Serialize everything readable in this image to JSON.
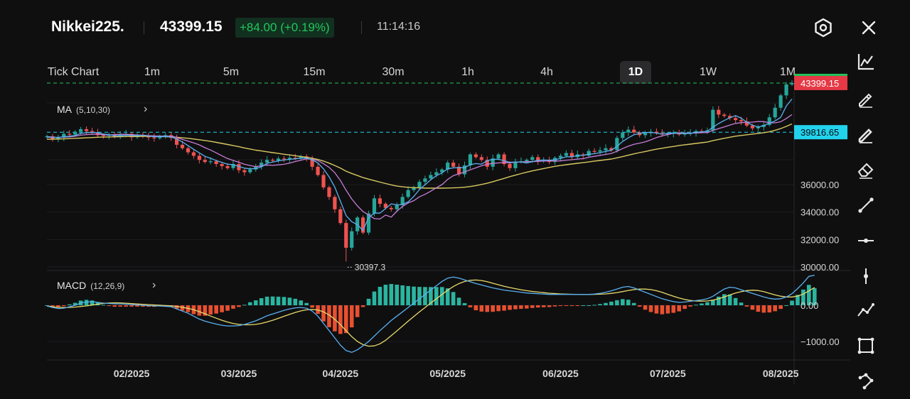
{
  "header": {
    "symbol": "Nikkei225.",
    "price": "43399.15",
    "change": "+84.00 (+0.19%)",
    "time": "11:14:16",
    "icons": [
      "settings-hex-icon",
      "close-icon"
    ]
  },
  "timeframes": [
    {
      "label": "Tick Chart",
      "active": false
    },
    {
      "label": "1m",
      "active": false
    },
    {
      "label": "5m",
      "active": false
    },
    {
      "label": "15m",
      "active": false
    },
    {
      "label": "30m",
      "active": false
    },
    {
      "label": "1h",
      "active": false
    },
    {
      "label": "4h",
      "active": false
    },
    {
      "label": "1D",
      "active": true
    },
    {
      "label": "1W",
      "active": false
    },
    {
      "label": "1M",
      "active": false
    }
  ],
  "ma_legend": {
    "name": "MA",
    "params": "(5,10,30)"
  },
  "macd_legend": {
    "name": "MACD",
    "params": "(12,26,9)"
  },
  "right_tools": [
    "line-chart-icon",
    "pencil-icon",
    "pencil-bold-icon",
    "eraser-icon",
    "trend-line-icon",
    "horizontal-line-icon",
    "vertical-line-icon",
    "polyline-icon",
    "rectangle-icon",
    "pattern-icon"
  ],
  "colors": {
    "up": "#26a69a",
    "down": "#ef5350",
    "ma5": "#5ab0f0",
    "ma10": "#c77dd6",
    "ma30": "#d8c860",
    "macd_line": "#5ab0f0",
    "signal_line": "#e8d96a",
    "hist_pos": "#2bb5a0",
    "hist_neg": "#e8502f",
    "current_price_line": "#22c55e",
    "ref_price_line": "#22d3ee",
    "current_price_tag": "#e53945",
    "ref_price_tag": "#22d3ee",
    "positive_change": "#22c55e"
  },
  "chart_data": {
    "type": "candlestick",
    "price_ticks": [
      "36000.00",
      "34000.00",
      "32000.00",
      "30000.00"
    ],
    "price_tick_values": [
      36000,
      34000,
      32000,
      30000
    ],
    "current_price_label": "43399.15",
    "current_price": 43399.15,
    "ref_price_label": "39816.65",
    "ref_price": 39816.65,
    "low_annotation": "30397.3",
    "low_value": 30397.3,
    "macd_ticks": [
      "0.00",
      "−1000.00"
    ],
    "macd_tick_values": [
      0,
      -1000
    ],
    "x_labels": [
      "02/2025",
      "03/2025",
      "04/2025",
      "05/2025",
      "06/2025",
      "07/2025",
      "08/2025"
    ],
    "x_label_index": [
      15,
      34,
      52,
      71,
      91,
      110,
      130
    ],
    "close": [
      39520,
      39300,
      39420,
      39700,
      39650,
      39850,
      40040,
      39900,
      39780,
      39600,
      39550,
      39620,
      39480,
      39650,
      39700,
      39450,
      39600,
      39550,
      39430,
      39380,
      39520,
      39600,
      39400,
      38900,
      38650,
      38350,
      38100,
      37800,
      37650,
      37700,
      37500,
      37350,
      37200,
      37500,
      37050,
      36900,
      37100,
      37300,
      37600,
      37800,
      37750,
      37900,
      37850,
      37950,
      37900,
      38050,
      37900,
      37300,
      36700,
      35800,
      35100,
      34200,
      33200,
      31400,
      32600,
      33600,
      32500,
      33900,
      35000,
      34600,
      34300,
      34200,
      34500,
      35100,
      35600,
      35800,
      36200,
      36450,
      36700,
      36900,
      37100,
      37600,
      37300,
      36750,
      37400,
      38200,
      38000,
      37800,
      37300,
      37900,
      38200,
      37500,
      37200,
      37650,
      37700,
      37800,
      38000,
      37700,
      37750,
      37650,
      37950,
      38100,
      38300,
      38000,
      38200,
      38100,
      38450,
      38400,
      38500,
      38650,
      38500,
      39400,
      39800,
      40000,
      39800,
      39600,
      39750,
      39850,
      39750,
      39650,
      39700,
      39800,
      39650,
      39750,
      39750,
      39900,
      39850,
      39950,
      41450,
      41100,
      41000,
      40850,
      40700,
      40600,
      40300,
      40100,
      40200,
      40350,
      40900,
      41600,
      42500,
      43300,
      43399
    ],
    "ma5": [
      39500,
      39460,
      39430,
      39480,
      39530,
      39580,
      39730,
      39780,
      39800,
      39780,
      39680,
      39640,
      39560,
      39560,
      39600,
      39580,
      39580,
      39590,
      39540,
      39480,
      39500,
      39500,
      39470,
      39320,
      39110,
      38840,
      38570,
      38310,
      38060,
      37920,
      37750,
      37620,
      37490,
      37450,
      37320,
      37200,
      37150,
      37170,
      37290,
      37550,
      37640,
      37730,
      37790,
      37840,
      37880,
      37930,
      37930,
      37800,
      37580,
      37150,
      36560,
      35820,
      34800,
      33740,
      33300,
      33080,
      32660,
      33600,
      33920,
      33920,
      34260,
      34600,
      34520,
      34550,
      34740,
      35140,
      35640,
      35990,
      36350,
      36650,
      36860,
      37150,
      37220,
      37230,
      37230,
      37450,
      37530,
      37490,
      37740,
      37840,
      37840,
      37740,
      37620,
      37650,
      37650,
      37570,
      37670,
      37770,
      37790,
      37780,
      37810,
      37900,
      38030,
      38030,
      38110,
      38140,
      38210,
      38250,
      38330,
      38420,
      38500,
      38790,
      39140,
      39410,
      39630,
      39720,
      39790,
      39800,
      39750,
      39680,
      39740,
      39750,
      39720,
      39720,
      39730,
      39810,
      39840,
      39880,
      40180,
      40450,
      40670,
      40870,
      41020,
      40840,
      40550,
      40330,
      40190,
      40310,
      40470,
      40640,
      40900,
      41730,
      42240
    ],
    "ma10": [
      39450,
      39440,
      39440,
      39460,
      39480,
      39520,
      39600,
      39640,
      39660,
      39680,
      39630,
      39610,
      39640,
      39660,
      39660,
      39640,
      39610,
      39600,
      39570,
      39550,
      39540,
      39530,
      39530,
      39440,
      39290,
      39170,
      39040,
      38890,
      38690,
      38520,
      38310,
      38100,
      37900,
      37760,
      37630,
      37480,
      37390,
      37310,
      37370,
      37430,
      37400,
      37440,
      37480,
      37560,
      37680,
      37780,
      37870,
      37840,
      37750,
      37520,
      37250,
      36870,
      36300,
      35590,
      34960,
      34450,
      34040,
      33790,
      33520,
      33490,
      33780,
      33630,
      34060,
      34410,
      34660,
      34830,
      35110,
      35290,
      35520,
      35770,
      36000,
      36380,
      36650,
      36780,
      36920,
      37080,
      37220,
      37370,
      37480,
      37540,
      37580,
      37620,
      37580,
      37640,
      37650,
      37670,
      37680,
      37690,
      37710,
      37730,
      37720,
      37730,
      37780,
      37810,
      37860,
      37890,
      37990,
      38060,
      38130,
      38200,
      38270,
      38430,
      38630,
      38800,
      38940,
      39020,
      39120,
      39260,
      39430,
      39550,
      39640,
      39740,
      39740,
      39750,
      39750,
      39760,
      39780,
      39790,
      39940,
      40080,
      40200,
      40340,
      40460,
      40510,
      40540,
      40550,
      40600,
      40590,
      40510,
      40500,
      40580,
      40820,
      41100
    ],
    "ma30": [
      39300,
      39310,
      39320,
      39330,
      39350,
      39370,
      39390,
      39410,
      39430,
      39450,
      39460,
      39470,
      39480,
      39490,
      39500,
      39500,
      39500,
      39510,
      39510,
      39510,
      39500,
      39490,
      39480,
      39450,
      39410,
      39370,
      39320,
      39270,
      39210,
      39150,
      39080,
      39000,
      38920,
      38840,
      38760,
      38670,
      38590,
      38510,
      38450,
      38390,
      38330,
      38270,
      38210,
      38160,
      38100,
      38050,
      37990,
      37920,
      37830,
      37710,
      37560,
      37390,
      37200,
      36980,
      36810,
      36660,
      36510,
      36400,
      36290,
      36180,
      36080,
      35980,
      35890,
      35840,
      35800,
      35780,
      35760,
      35740,
      35740,
      35740,
      35740,
      35750,
      35760,
      35780,
      35810,
      35860,
      35930,
      36010,
      36100,
      36210,
      36330,
      36450,
      36580,
      36690,
      36800,
      36900,
      37000,
      37080,
      37170,
      37250,
      37330,
      37390,
      37450,
      37500,
      37550,
      37600,
      37650,
      37710,
      37760,
      37810,
      37860,
      37950,
      38040,
      38140,
      38240,
      38330,
      38410,
      38500,
      38580,
      38650,
      38720,
      38780,
      38850,
      38900,
      38950,
      39000,
      39050,
      39100,
      39200,
      39290,
      39370,
      39450,
      39530,
      39580,
      39630,
      39680,
      39730,
      39780,
      39850,
      39950,
      40080,
      40240,
      40420
    ],
    "macd": [
      -20,
      -60,
      -90,
      -80,
      -40,
      0,
      60,
      90,
      100,
      80,
      60,
      50,
      40,
      40,
      30,
      20,
      10,
      0,
      -10,
      -20,
      -20,
      -30,
      -40,
      -100,
      -160,
      -220,
      -300,
      -380,
      -440,
      -480,
      -520,
      -550,
      -570,
      -570,
      -560,
      -530,
      -480,
      -430,
      -360,
      -290,
      -240,
      -190,
      -140,
      -100,
      -70,
      -60,
      -80,
      -160,
      -300,
      -500,
      -700,
      -900,
      -1100,
      -1250,
      -1300,
      -1230,
      -1120,
      -1000,
      -850,
      -700,
      -560,
      -420,
      -300,
      -180,
      -60,
      60,
      180,
      300,
      420,
      540,
      660,
      750,
      780,
      750,
      700,
      650,
      600,
      560,
      520,
      480,
      450,
      420,
      400,
      380,
      360,
      340,
      330,
      320,
      310,
      300,
      300,
      300,
      300,
      300,
      300,
      300,
      300,
      310,
      330,
      360,
      400,
      450,
      500,
      520,
      480,
      420,
      360,
      300,
      240,
      180,
      140,
      100,
      80,
      90,
      110,
      130,
      150,
      180,
      250,
      350,
      450,
      500,
      480,
      430,
      380,
      330,
      280,
      230,
      190,
      170,
      180,
      230,
      320,
      460,
      620,
      800,
      830
    ]
  }
}
